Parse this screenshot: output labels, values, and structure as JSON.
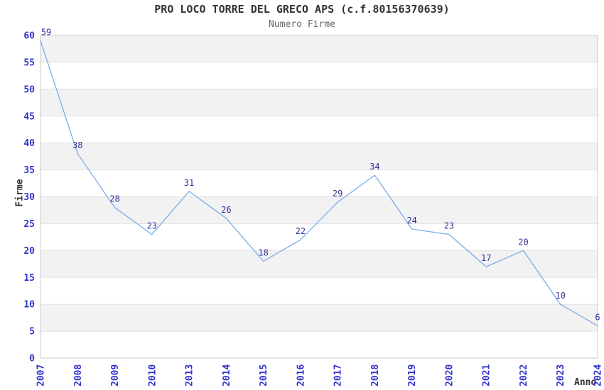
{
  "chart_data": {
    "type": "line",
    "title": "PRO LOCO TORRE DEL GRECO APS (c.f.80156370639)",
    "subtitle": "Numero Firme",
    "xlabel": "Anno",
    "ylabel": "Firme",
    "categories": [
      "2007",
      "2008",
      "2009",
      "2010",
      "2013",
      "2014",
      "2015",
      "2016",
      "2017",
      "2018",
      "2019",
      "2020",
      "2021",
      "2022",
      "2023",
      "2024"
    ],
    "values": [
      59,
      38,
      28,
      23,
      31,
      26,
      18,
      22,
      29,
      34,
      24,
      23,
      17,
      20,
      10,
      6
    ],
    "ylim": [
      0,
      60
    ],
    "y_ticks": [
      0,
      5,
      10,
      15,
      20,
      25,
      30,
      35,
      40,
      45,
      50,
      55,
      60
    ],
    "x_tick_rotation_deg": -90,
    "grid": "alternating-horizontal-bands",
    "legend": "none",
    "point_labels_visible": true,
    "colors": {
      "line": "#7aade8",
      "point_label": "#333399",
      "tick_label": "#3333cc",
      "band": "#f2f2f2",
      "gridline": "#e2e2e2",
      "plot_border": "#c8c8c8",
      "title": "#333333",
      "subtitle": "#666666",
      "axis_title": "#333333",
      "background": "#ffffff"
    }
  }
}
